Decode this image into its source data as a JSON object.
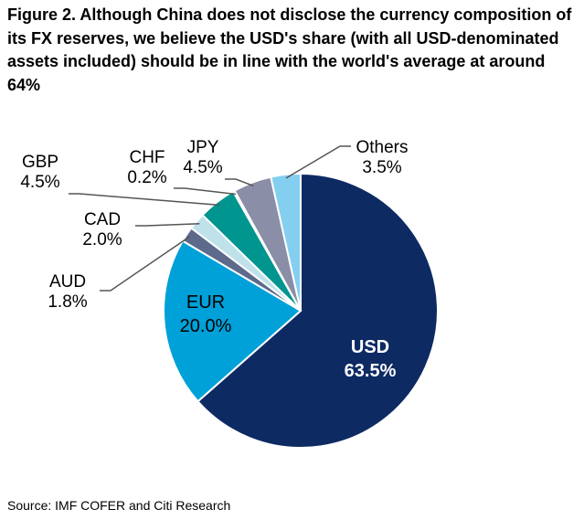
{
  "title": "Figure 2. Although China does not disclose the currency composition of its FX reserves, we believe the USD's share (with all USD-denominated assets included) should be in line with the world's average at around 64%",
  "source": "Source: IMF COFER and Citi Research",
  "chart_data": {
    "type": "pie",
    "slices": [
      {
        "name": "USD",
        "value": 63.5,
        "label": "63.5%",
        "color": "#0d2a63",
        "text_color": "#ffffff"
      },
      {
        "name": "EUR",
        "value": 20.0,
        "label": "20.0%",
        "color": "#00a0d8",
        "text_color": "#000000"
      },
      {
        "name": "AUD",
        "value": 1.8,
        "label": "1.8%",
        "color": "#5d6a8c"
      },
      {
        "name": "CAD",
        "value": 2.0,
        "label": "2.0%",
        "color": "#bfe2ea"
      },
      {
        "name": "GBP",
        "value": 4.5,
        "label": "4.5%",
        "color": "#00958f"
      },
      {
        "name": "CHF",
        "value": 0.2,
        "label": "0.2%",
        "color": "#e6e6e6"
      },
      {
        "name": "JPY",
        "value": 4.5,
        "label": "4.5%",
        "color": "#8a8ea6"
      },
      {
        "name": "Others",
        "value": 3.5,
        "label": "3.5%",
        "color": "#84cff0"
      }
    ],
    "start": "top",
    "direction": "clockwise"
  }
}
